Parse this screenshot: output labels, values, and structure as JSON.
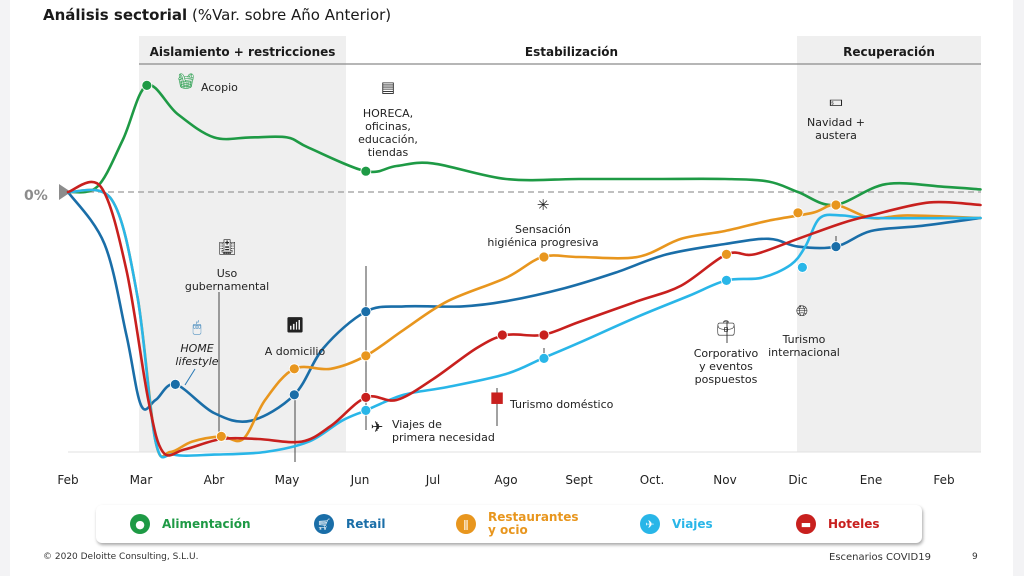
{
  "title": {
    "bold": "Análisis sectorial",
    "normal": "(%Var. sobre Año Anterior)"
  },
  "footer": {
    "copyright": "© 2020 Deloitte Consulting, S.L.U.",
    "doc_name": "Escenarios COVID19",
    "page": "9"
  },
  "chart_data": {
    "type": "line",
    "title": "Análisis sectorial (%Var. sobre Año Anterior)",
    "xlabel": "",
    "ylabel": "%Var. sobre Año Anterior",
    "baseline_label": "0%",
    "categories": [
      "Feb",
      "Mar",
      "Abr",
      "May",
      "Jun",
      "Jul",
      "Ago",
      "Sept",
      "Oct.",
      "Nov",
      "Dic",
      "Ene",
      "Feb"
    ],
    "ylim": [
      -100,
      45
    ],
    "y_units_note": "relative scale; 0% baseline dashed, values approximate",
    "phases": [
      {
        "label": "Aislamiento + restricciones",
        "start": 1.0,
        "end": 3.85,
        "shaded": true
      },
      {
        "label": "Estabilización",
        "start": 3.85,
        "end": 10.0,
        "shaded": false
      },
      {
        "label": "Recuperación",
        "start": 10.0,
        "end": 12.5,
        "shaded": true
      }
    ],
    "series": [
      {
        "name": "Alimentación",
        "color": "#1e9a45",
        "points": [
          [
            0,
            0
          ],
          [
            0.4,
            2
          ],
          [
            0.75,
            20
          ],
          [
            1.08,
            41
          ],
          [
            1.5,
            30
          ],
          [
            2.0,
            21
          ],
          [
            2.5,
            21
          ],
          [
            3.0,
            21
          ],
          [
            3.3,
            17
          ],
          [
            4.08,
            8
          ],
          [
            4.5,
            10
          ],
          [
            5,
            11
          ],
          [
            6,
            5
          ],
          [
            7,
            5
          ],
          [
            8,
            5
          ],
          [
            9,
            5
          ],
          [
            9.6,
            4
          ],
          [
            10.0,
            0
          ],
          [
            10.5,
            -5
          ],
          [
            11.2,
            3
          ],
          [
            12,
            2
          ],
          [
            12.5,
            1
          ]
        ]
      },
      {
        "name": "Retail",
        "color": "#1a6ea8",
        "points": [
          [
            0,
            0
          ],
          [
            0.5,
            -20
          ],
          [
            0.8,
            -55
          ],
          [
            1.0,
            -82
          ],
          [
            1.2,
            -80
          ],
          [
            1.47,
            -74
          ],
          [
            2.0,
            -85
          ],
          [
            2.5,
            -88
          ],
          [
            3.1,
            -78
          ],
          [
            3.5,
            -60
          ],
          [
            4.08,
            -46
          ],
          [
            4.6,
            -44
          ],
          [
            5.4,
            -44
          ],
          [
            6,
            -42
          ],
          [
            6.8,
            -37
          ],
          [
            7.5,
            -31
          ],
          [
            8.2,
            -24
          ],
          [
            9,
            -20
          ],
          [
            9.6,
            -18
          ],
          [
            10,
            -21
          ],
          [
            10.52,
            -21
          ],
          [
            11,
            -15
          ],
          [
            11.7,
            -13
          ],
          [
            12.5,
            -10
          ]
        ]
      },
      {
        "name": "Restaurantes y ocio",
        "color": "#e8961e",
        "points": [
          [
            0,
            0
          ],
          [
            0.6,
            -3
          ],
          [
            0.95,
            -40
          ],
          [
            1.2,
            -96
          ],
          [
            1.4,
            -100
          ],
          [
            1.7,
            -96
          ],
          [
            2.1,
            -94
          ],
          [
            2.4,
            -95
          ],
          [
            2.7,
            -80
          ],
          [
            3.1,
            -68
          ],
          [
            3.6,
            -68
          ],
          [
            4.08,
            -63
          ],
          [
            4.6,
            -53
          ],
          [
            5.2,
            -42
          ],
          [
            6,
            -33
          ],
          [
            6.5,
            -25
          ],
          [
            7,
            -25
          ],
          [
            7.8,
            -25
          ],
          [
            8.4,
            -18
          ],
          [
            9,
            -15
          ],
          [
            9.6,
            -11
          ],
          [
            10.2,
            -8
          ],
          [
            10.52,
            -5
          ],
          [
            11,
            -10
          ],
          [
            11.5,
            -9
          ],
          [
            12.5,
            -10
          ]
        ]
      },
      {
        "name": "Viajes",
        "color": "#29b6e8",
        "points": [
          [
            0,
            0
          ],
          [
            0.6,
            -3
          ],
          [
            0.95,
            -40
          ],
          [
            1.2,
            -96
          ],
          [
            1.45,
            -101
          ],
          [
            2.0,
            -101
          ],
          [
            2.7,
            -100
          ],
          [
            3.3,
            -96
          ],
          [
            3.75,
            -88
          ],
          [
            4.08,
            -84
          ],
          [
            4.6,
            -78
          ],
          [
            5.2,
            -75
          ],
          [
            6,
            -70
          ],
          [
            6.5,
            -64
          ],
          [
            7.0,
            -58
          ],
          [
            7.8,
            -48
          ],
          [
            8.5,
            -40
          ],
          [
            9.02,
            -34
          ],
          [
            9.5,
            -33
          ],
          [
            9.9,
            -28
          ],
          [
            10.1,
            -21
          ],
          [
            10.3,
            -10
          ],
          [
            10.6,
            -9
          ],
          [
            11,
            -10
          ],
          [
            12.5,
            -10
          ]
        ]
      },
      {
        "name": "Hoteles",
        "color": "#c8201e",
        "points": [
          [
            0,
            0
          ],
          [
            0.45,
            2
          ],
          [
            0.8,
            -30
          ],
          [
            1.1,
            -80
          ],
          [
            1.3,
            -100
          ],
          [
            1.6,
            -99
          ],
          [
            2.1,
            -95
          ],
          [
            2.6,
            -95
          ],
          [
            3.2,
            -96
          ],
          [
            3.6,
            -90
          ],
          [
            4.08,
            -79
          ],
          [
            4.5,
            -80
          ],
          [
            5,
            -72
          ],
          [
            5.6,
            -60
          ],
          [
            6.0,
            -55
          ],
          [
            6.5,
            -55
          ],
          [
            7,
            -50
          ],
          [
            7.8,
            -42
          ],
          [
            8.4,
            -36
          ],
          [
            9.02,
            -24
          ],
          [
            9.4,
            -24
          ],
          [
            10,
            -18
          ],
          [
            10.6,
            -12
          ],
          [
            11,
            -9
          ],
          [
            11.8,
            -4
          ],
          [
            12.5,
            -5
          ]
        ]
      }
    ],
    "markers": [
      {
        "series": "Alimentación",
        "x": 1.08,
        "y": 41
      },
      {
        "series": "Alimentación",
        "x": 4.08,
        "y": 8
      },
      {
        "series": "Alimentación",
        "x": 10.52,
        "y": -5
      },
      {
        "series": "Retail",
        "x": 1.47,
        "y": -74
      },
      {
        "series": "Retail",
        "x": 3.1,
        "y": -78
      },
      {
        "series": "Retail",
        "x": 4.08,
        "y": -46
      },
      {
        "series": "Retail",
        "x": 10.52,
        "y": -21
      },
      {
        "series": "Restaurantes y ocio",
        "x": 2.1,
        "y": -94
      },
      {
        "series": "Restaurantes y ocio",
        "x": 3.1,
        "y": -68
      },
      {
        "series": "Restaurantes y ocio",
        "x": 4.08,
        "y": -63
      },
      {
        "series": "Restaurantes y ocio",
        "x": 6.52,
        "y": -25
      },
      {
        "series": "Restaurantes y ocio",
        "x": 9.02,
        "y": -24
      },
      {
        "series": "Restaurantes y ocio",
        "x": 10.0,
        "y": -8
      },
      {
        "series": "Restaurantes y ocio",
        "x": 10.52,
        "y": -5
      },
      {
        "series": "Viajes",
        "x": 4.08,
        "y": -84
      },
      {
        "series": "Viajes",
        "x": 6.52,
        "y": -64
      },
      {
        "series": "Viajes",
        "x": 9.02,
        "y": -34
      },
      {
        "series": "Viajes",
        "x": 10.06,
        "y": -29
      },
      {
        "series": "Hoteles",
        "x": 4.08,
        "y": -79
      },
      {
        "series": "Hoteles",
        "x": 5.95,
        "y": -55
      },
      {
        "series": "Hoteles",
        "x": 6.52,
        "y": -55
      }
    ],
    "annotations": [
      {
        "id": "acopio",
        "lines": [
          "Acopio"
        ],
        "icon": "basket-icon",
        "color": "#1e9a45"
      },
      {
        "id": "horeca",
        "lines": [
          "HORECA,",
          "oficinas,",
          "educación,",
          "tiendas"
        ],
        "icon": "open-sign-icon",
        "color": "#222222"
      },
      {
        "id": "uso-gub",
        "lines": [
          "Uso",
          "gubernamental"
        ],
        "icon": "government-building-icon",
        "color": "#222222"
      },
      {
        "id": "home",
        "lines": [
          "HOME",
          "lifestyle"
        ],
        "icon": "mouse-icon",
        "color": "#2a7ab5"
      },
      {
        "id": "domicilio",
        "lines": [
          "A domicilio"
        ],
        "icon": "wifi-icon",
        "color": "#222222"
      },
      {
        "id": "viajes-nec",
        "lines": [
          "Viajes de",
          "primera necesidad"
        ],
        "icon": "airplane-icon",
        "color": "#222222"
      },
      {
        "id": "sensacion",
        "lines": [
          "Sensación",
          "higiénica progresiva"
        ],
        "icon": "medical-cross-icon",
        "color": "#222222"
      },
      {
        "id": "turismo-dom",
        "lines": [
          "Turismo doméstico"
        ],
        "icon": "spain-map-icon",
        "color": "#c8201e"
      },
      {
        "id": "corporativo",
        "lines": [
          "Corporativo",
          "y eventos",
          "pospuestos"
        ],
        "icon": "briefcase-icon",
        "color": "#222222"
      },
      {
        "id": "turismo-int",
        "lines": [
          "Turismo",
          "internacional"
        ],
        "icon": "globe-icon",
        "color": "#222222"
      },
      {
        "id": "navidad",
        "lines": [
          "Navidad +",
          "austera"
        ],
        "icon": "money-icon",
        "color": "#222222"
      }
    ],
    "legend": {
      "placement": "bottom",
      "entries": [
        {
          "label": "Alimentación",
          "color": "#1e9a45",
          "icon": "apple-icon"
        },
        {
          "label": "Retail",
          "color": "#1a6ea8",
          "icon": "cart-icon"
        },
        {
          "label": "Restaurantes\ny ocio",
          "color": "#e8961e",
          "icon": "cutlery-icon"
        },
        {
          "label": "Viajes",
          "color": "#29b6e8",
          "icon": "airplane-icon"
        },
        {
          "label": "Hoteles",
          "color": "#c8201e",
          "icon": "bed-icon"
        }
      ]
    }
  }
}
